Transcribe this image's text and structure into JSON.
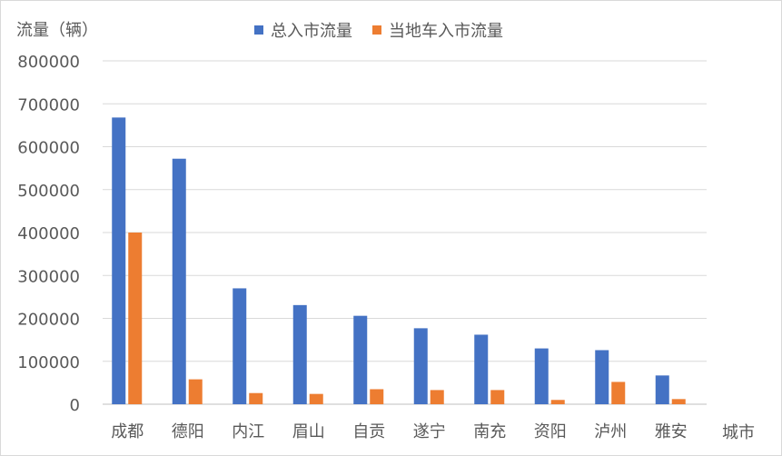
{
  "chart_data": {
    "type": "bar",
    "ylabel": "流量（辆）",
    "xlabel": "城市",
    "categories": [
      "成都",
      "德阳",
      "内江",
      "眉山",
      "自贡",
      "遂宁",
      "南充",
      "资阳",
      "泸州",
      "雅安"
    ],
    "series": [
      {
        "name": "总入市流量",
        "color": "#4472c4",
        "values": [
          668000,
          572000,
          270000,
          231000,
          206000,
          177000,
          162000,
          130000,
          126000,
          67000
        ]
      },
      {
        "name": "当地车入市流量",
        "color": "#ed7d31",
        "values": [
          400000,
          58000,
          26000,
          24000,
          35000,
          33000,
          33000,
          10000,
          52000,
          12000
        ]
      }
    ],
    "ylim": [
      0,
      800000
    ],
    "yticks": [
      "0",
      "100000",
      "200000",
      "300000",
      "400000",
      "500000",
      "600000",
      "700000",
      "800000"
    ],
    "grid": true,
    "legend_position": "top"
  }
}
